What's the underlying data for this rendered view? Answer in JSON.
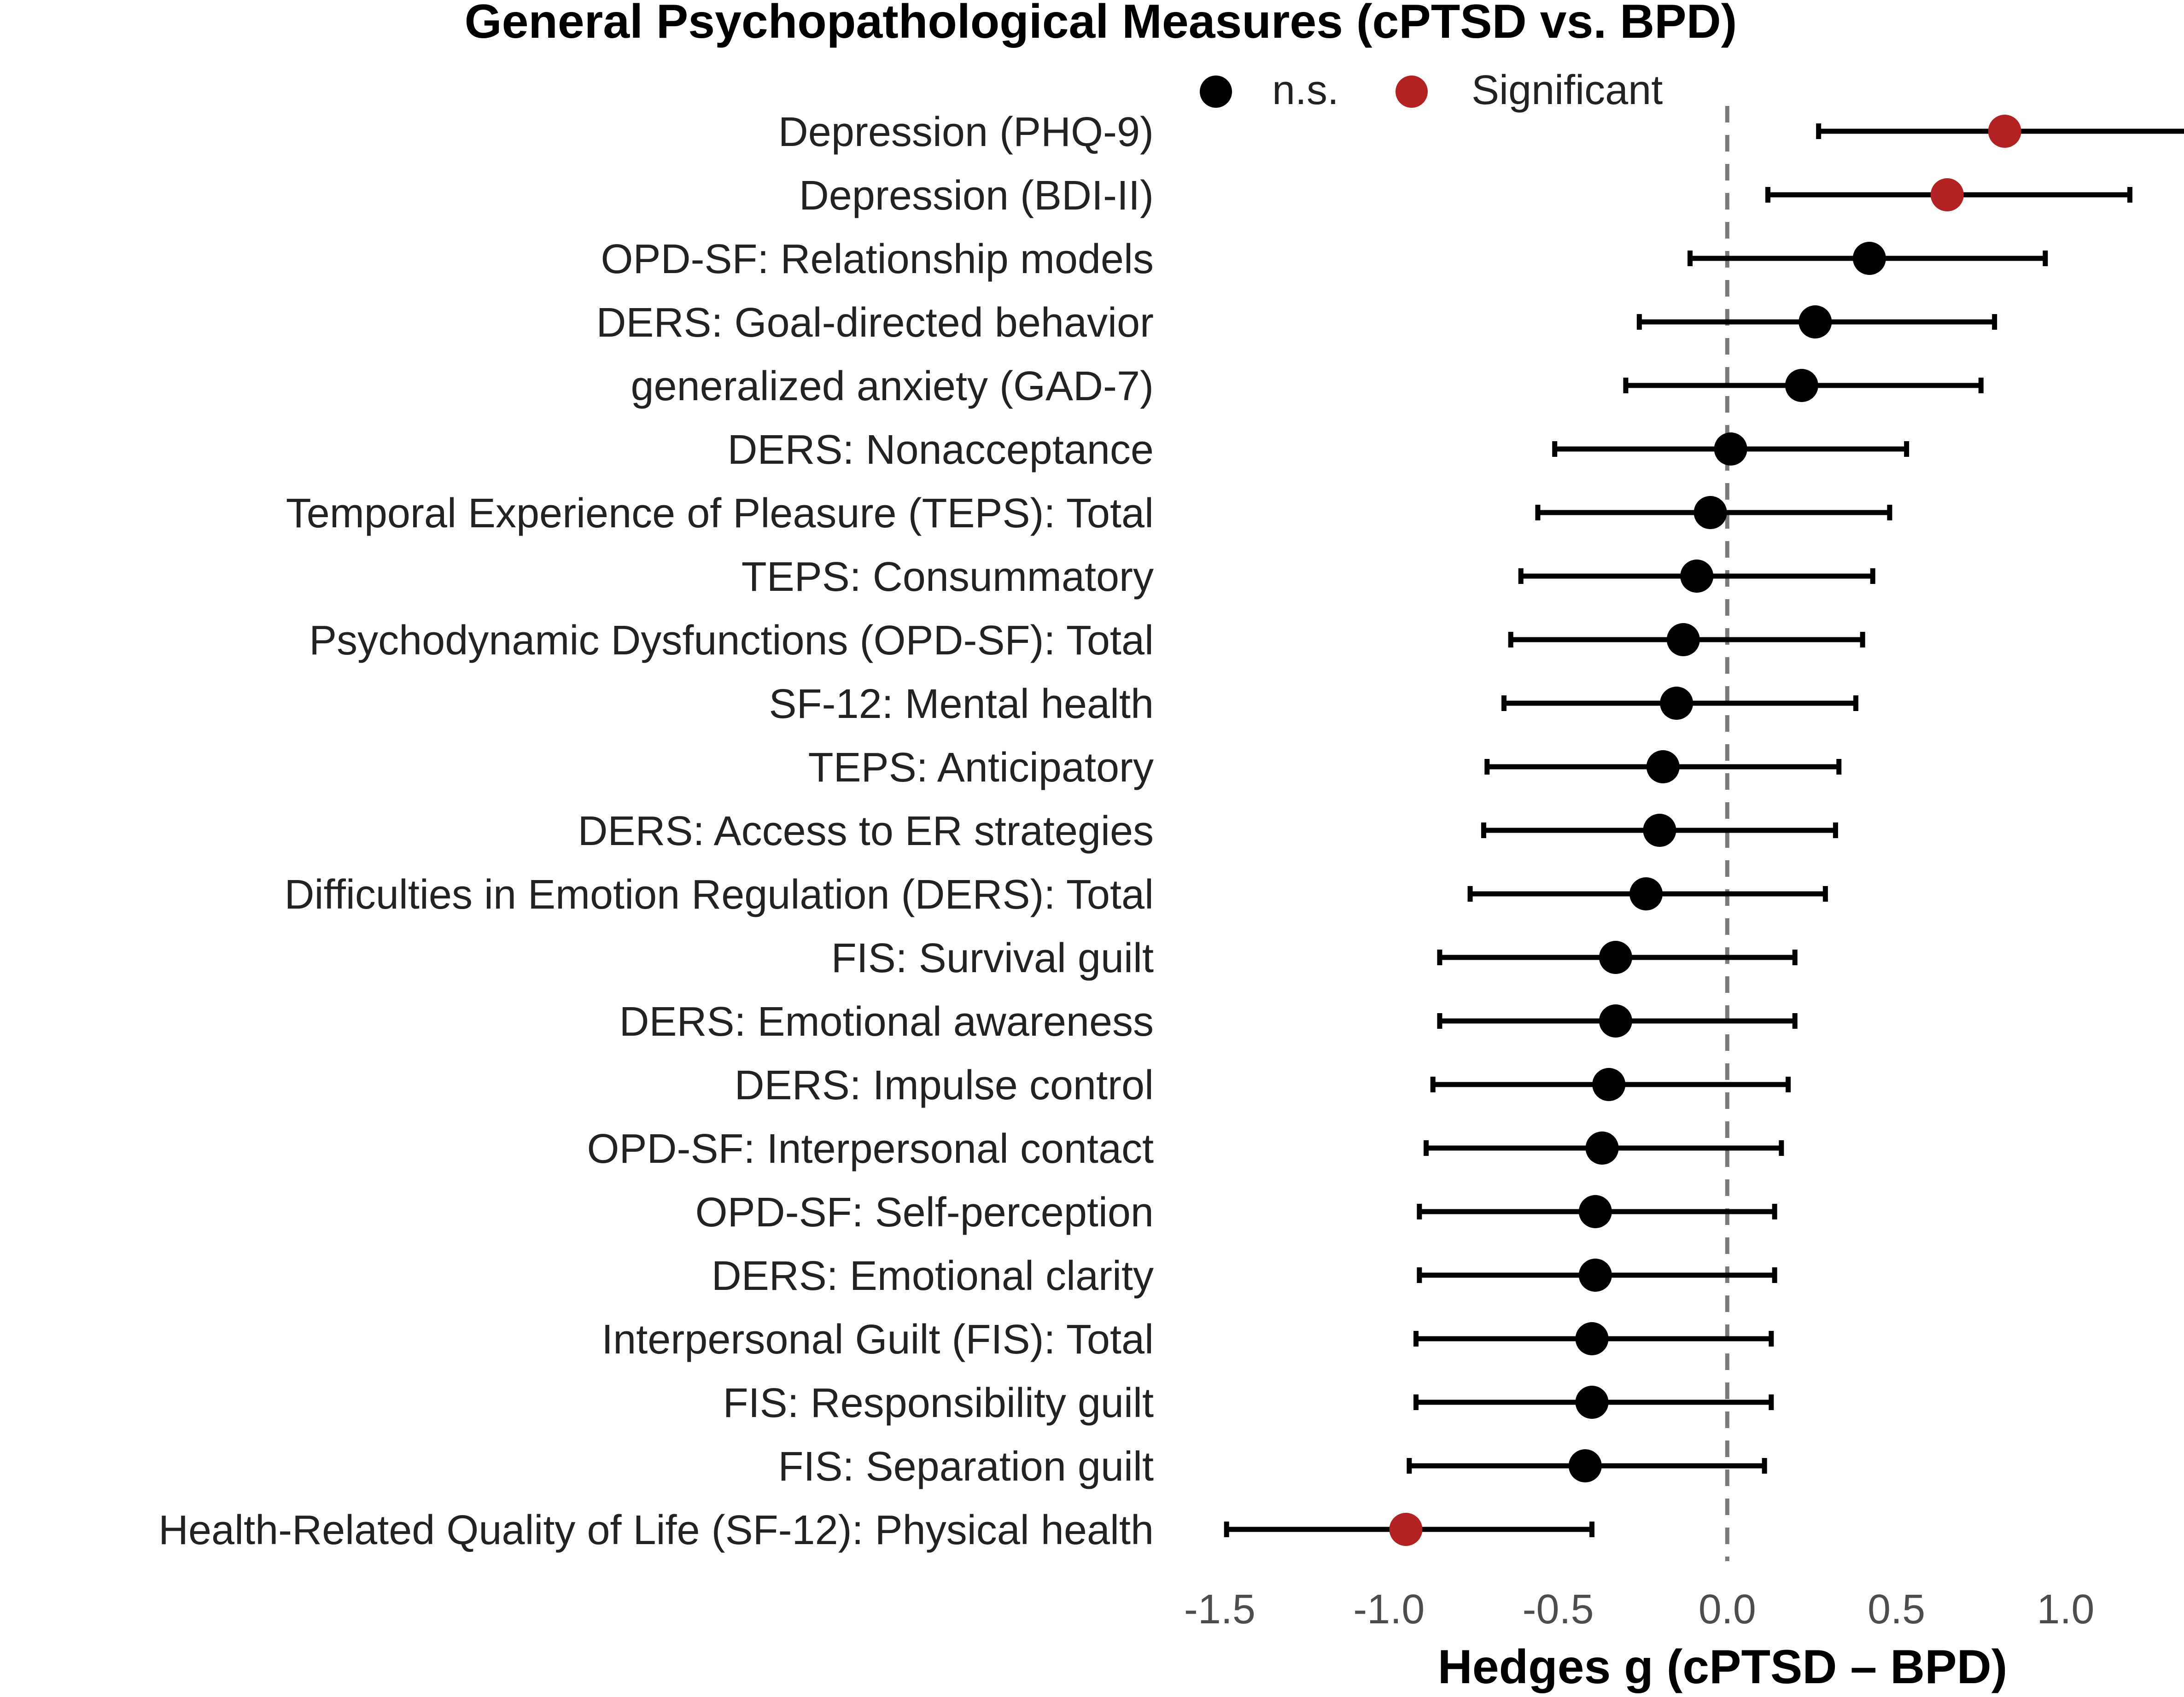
{
  "chart_data": {
    "type": "forest",
    "title": "General Psychopathological Measures (cPTSD vs. BPD)",
    "xlabel": "Hedges g (cPTSD – BPD)",
    "ylabel": "",
    "xlim": [
      -1.6,
      1.35
    ],
    "x_ticks": [
      -1.5,
      -1.0,
      -0.5,
      0.0,
      0.5,
      1.0
    ],
    "x_tick_labels": [
      "-1.5",
      "-1.0",
      "-0.5",
      "0.0",
      "0.5",
      "1.0"
    ],
    "reference_line": 0,
    "grid": false,
    "legend": {
      "position": "top",
      "entries": [
        {
          "label": "n.s.",
          "color": "#000000"
        },
        {
          "label": "Significant",
          "color": "#b22222"
        }
      ]
    },
    "measures": [
      {
        "label": "Depression (PHQ-9)",
        "g": 0.82,
        "lower": 0.27,
        "upper": 1.37,
        "significant": true
      },
      {
        "label": "Depression (BDI-II)",
        "g": 0.65,
        "lower": 0.12,
        "upper": 1.19,
        "significant": true
      },
      {
        "label": "OPD-SF: Relationship models",
        "g": 0.42,
        "lower": -0.11,
        "upper": 0.94,
        "significant": false
      },
      {
        "label": "DERS: Goal-directed behavior",
        "g": 0.26,
        "lower": -0.26,
        "upper": 0.79,
        "significant": false
      },
      {
        "label": "generalized anxiety (GAD-7)",
        "g": 0.22,
        "lower": -0.3,
        "upper": 0.75,
        "significant": false
      },
      {
        "label": "DERS: Nonacceptance",
        "g": 0.01,
        "lower": -0.51,
        "upper": 0.53,
        "significant": false
      },
      {
        "label": "Temporal Experience of Pleasure (TEPS): Total",
        "g": -0.05,
        "lower": -0.56,
        "upper": 0.48,
        "significant": false
      },
      {
        "label": "TEPS: Consummatory",
        "g": -0.09,
        "lower": -0.61,
        "upper": 0.43,
        "significant": false
      },
      {
        "label": "Psychodynamic Dysfunctions (OPD-SF): Total",
        "g": -0.13,
        "lower": -0.64,
        "upper": 0.4,
        "significant": false
      },
      {
        "label": "SF-12: Mental health",
        "g": -0.15,
        "lower": -0.66,
        "upper": 0.38,
        "significant": false
      },
      {
        "label": "TEPS: Anticipatory",
        "g": -0.19,
        "lower": -0.71,
        "upper": 0.33,
        "significant": false
      },
      {
        "label": "DERS: Access to ER strategies",
        "g": -0.2,
        "lower": -0.72,
        "upper": 0.32,
        "significant": false
      },
      {
        "label": "Difficulties in Emotion Regulation (DERS): Total",
        "g": -0.24,
        "lower": -0.76,
        "upper": 0.29,
        "significant": false
      },
      {
        "label": "FIS: Survival guilt",
        "g": -0.33,
        "lower": -0.85,
        "upper": 0.2,
        "significant": false
      },
      {
        "label": "DERS: Emotional awareness",
        "g": -0.33,
        "lower": -0.85,
        "upper": 0.2,
        "significant": false
      },
      {
        "label": "DERS: Impulse control",
        "g": -0.35,
        "lower": -0.87,
        "upper": 0.18,
        "significant": false
      },
      {
        "label": "OPD-SF: Interpersonal contact",
        "g": -0.37,
        "lower": -0.89,
        "upper": 0.16,
        "significant": false
      },
      {
        "label": "OPD-SF: Self-perception",
        "g": -0.39,
        "lower": -0.91,
        "upper": 0.14,
        "significant": false
      },
      {
        "label": "DERS: Emotional clarity",
        "g": -0.39,
        "lower": -0.91,
        "upper": 0.14,
        "significant": false
      },
      {
        "label": "Interpersonal Guilt (FIS): Total",
        "g": -0.4,
        "lower": -0.92,
        "upper": 0.13,
        "significant": false
      },
      {
        "label": "FIS: Responsibility guilt",
        "g": -0.4,
        "lower": -0.92,
        "upper": 0.13,
        "significant": false
      },
      {
        "label": "FIS: Separation guilt",
        "g": -0.42,
        "lower": -0.94,
        "upper": 0.11,
        "significant": false
      },
      {
        "label": "Health-Related Quality of Life (SF-12): Physical health",
        "g": -0.95,
        "lower": -1.48,
        "upper": -0.4,
        "significant": true
      }
    ]
  }
}
